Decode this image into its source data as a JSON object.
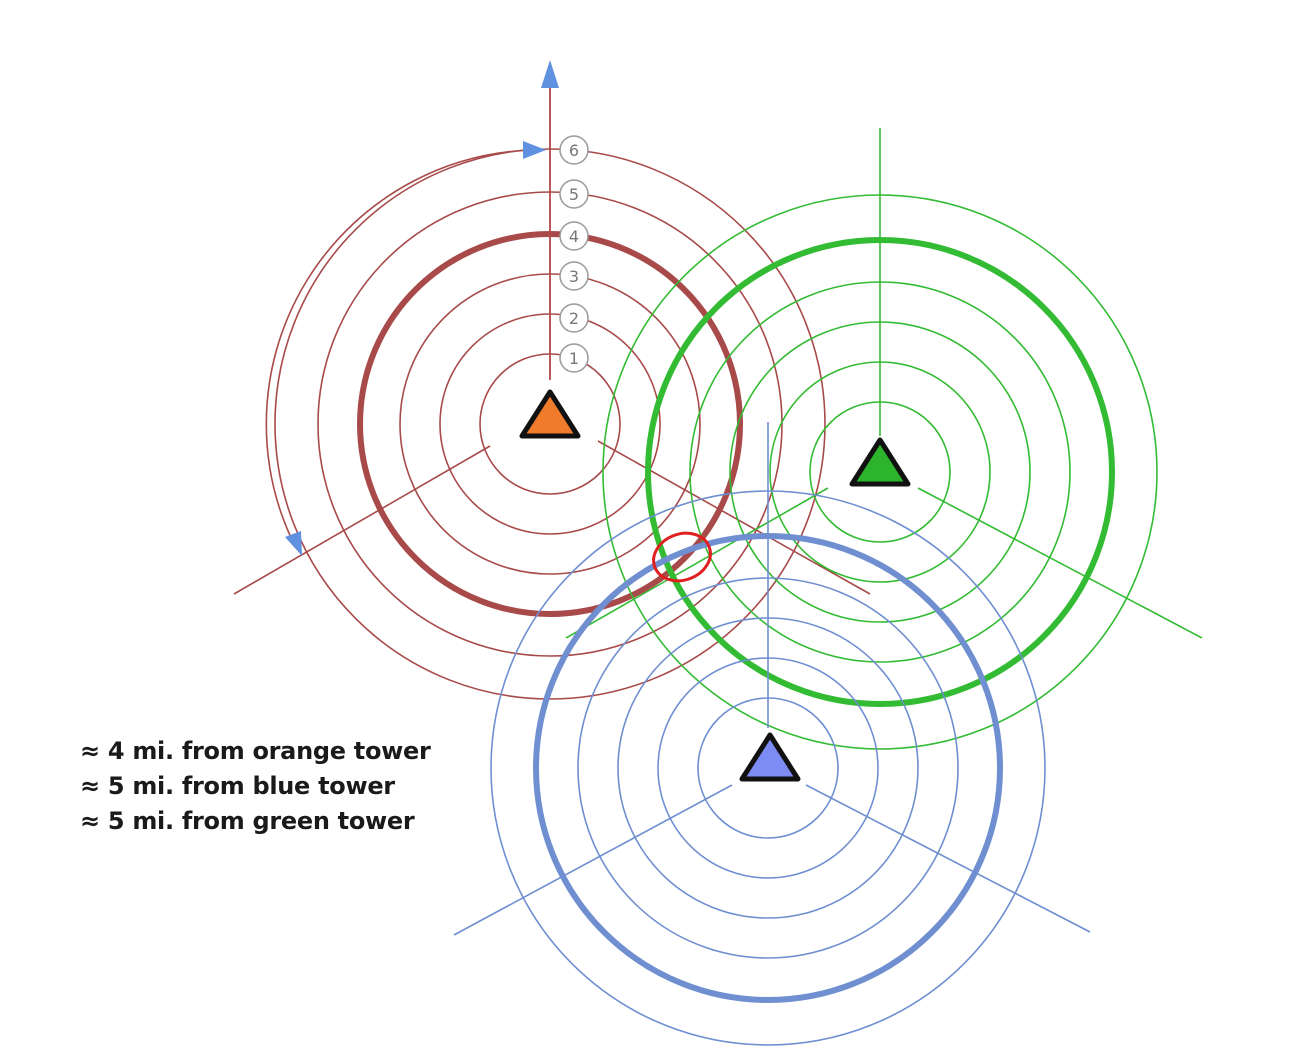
{
  "colors": {
    "orange_ring": "#a84a4a",
    "orange_fill": "#f07b2c",
    "green_ring": "#33bb33",
    "green_fill": "#2cb52c",
    "blue_ring": "#6f8fd0",
    "blue_fill": "#7c8cf4",
    "axis_arrow": "#6090e0",
    "intersection_marker": "#e02020",
    "label_text": "#777777"
  },
  "towers": [
    {
      "name": "orange",
      "icon": "triangle-tower-icon",
      "ring_count": 6,
      "highlighted_ring": 4
    },
    {
      "name": "green",
      "icon": "triangle-tower-icon",
      "ring_count": 6,
      "highlighted_ring": 5
    },
    {
      "name": "blue",
      "icon": "triangle-tower-icon",
      "ring_count": 6,
      "highlighted_ring": 5
    }
  ],
  "ring_labels": [
    "1",
    "2",
    "3",
    "4",
    "5",
    "6"
  ],
  "legend": [
    "≈ 4 mi. from orange tower",
    "≈ 5 mi. from blue tower",
    "≈ 5 mi. from green tower"
  ]
}
